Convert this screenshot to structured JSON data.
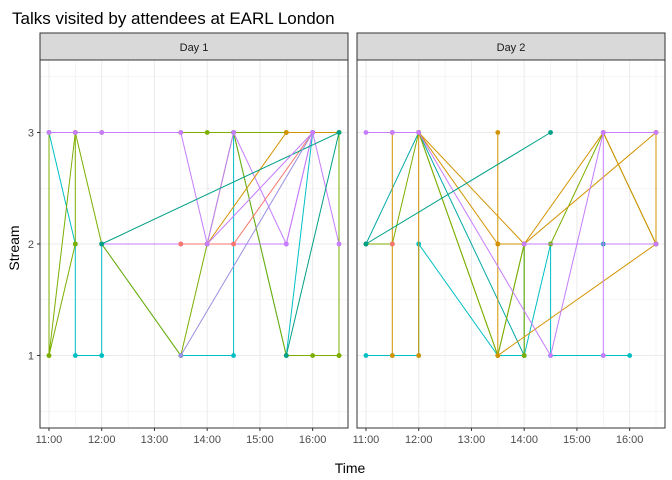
{
  "chart_data": {
    "type": "line",
    "title": "Talks visited by attendees at EARL London",
    "xlabel": "Time",
    "ylabel": "Stream",
    "facets": [
      "Day 1",
      "Day 2"
    ],
    "x_ticks": [
      "11:00",
      "12:00",
      "13:00",
      "14:00",
      "15:00",
      "16:00"
    ],
    "x_tick_values": [
      11,
      12,
      13,
      14,
      15,
      16
    ],
    "y_ticks": [
      "1",
      "2",
      "3"
    ],
    "y_tick_values": [
      1,
      2,
      3
    ],
    "xlim": [
      10.83,
      16.67
    ],
    "ylim": [
      0.35,
      3.65
    ],
    "grid": true,
    "panels": [
      {
        "facet": "Day 1",
        "series": [
          {
            "color": "#00BFC4",
            "points": [
              [
                11,
                3
              ],
              [
                11.5,
                2
              ],
              [
                11.5,
                1
              ],
              [
                12,
                1
              ],
              [
                12,
                2
              ],
              [
                13.5,
                1
              ],
              [
                14.5,
                1
              ],
              [
                14.5,
                3
              ],
              [
                15.5,
                1
              ],
              [
                16,
                3
              ]
            ]
          },
          {
            "color": "#7CAE00",
            "points": [
              [
                11,
                3
              ],
              [
                11,
                1
              ],
              [
                11.5,
                2
              ],
              [
                11.5,
                3
              ],
              [
                12,
                3
              ],
              [
                13.5,
                3
              ],
              [
                14,
                3
              ],
              [
                14.5,
                3
              ],
              [
                15.5,
                3
              ],
              [
                16.5,
                3
              ],
              [
                16.5,
                1
              ]
            ]
          },
          {
            "color": "#7CAE00",
            "points": [
              [
                11,
                1
              ],
              [
                11.5,
                3
              ],
              [
                12,
                2
              ],
              [
                13.5,
                1
              ],
              [
                14,
                2
              ],
              [
                14.5,
                3
              ],
              [
                15.5,
                1
              ],
              [
                16,
                1
              ],
              [
                16.5,
                1
              ]
            ]
          },
          {
            "color": "#C77CFF",
            "points": [
              [
                11,
                3
              ],
              [
                11.5,
                3
              ],
              [
                12,
                3
              ],
              [
                13.5,
                3
              ],
              [
                14,
                2
              ],
              [
                14.5,
                3
              ],
              [
                15.5,
                2
              ],
              [
                16,
                3
              ],
              [
                16.5,
                2
              ]
            ]
          },
          {
            "color": "#C77CFF",
            "points": [
              [
                12,
                2
              ],
              [
                13.5,
                2
              ],
              [
                14,
                2
              ],
              [
                14.5,
                2
              ],
              [
                15.5,
                2
              ],
              [
                16,
                3
              ]
            ]
          },
          {
            "color": "#F8766D",
            "points": [
              [
                13.5,
                2
              ],
              [
                14.5,
                2
              ],
              [
                16,
                3
              ]
            ]
          },
          {
            "color": "#D39200",
            "points": [
              [
                14,
                2
              ],
              [
                15.5,
                3
              ],
              [
                16,
                3
              ],
              [
                16.5,
                3
              ]
            ]
          },
          {
            "color": "#00A087",
            "points": [
              [
                12,
                2
              ],
              [
                16.5,
                3
              ],
              [
                15.5,
                1
              ]
            ]
          },
          {
            "color": "#9A8FE0",
            "points": [
              [
                13.5,
                1
              ],
              [
                16,
                3
              ]
            ]
          },
          {
            "color": "#C77CFF",
            "points": [
              [
                14,
                2
              ],
              [
                16,
                3
              ]
            ]
          }
        ]
      },
      {
        "facet": "Day 2",
        "series": [
          {
            "color": "#00BFC4",
            "points": [
              [
                11,
                1
              ],
              [
                11.5,
                1
              ],
              [
                12,
                1
              ],
              [
                12,
                2
              ],
              [
                13.5,
                1
              ],
              [
                14,
                1
              ],
              [
                14.5,
                2
              ],
              [
                14.5,
                1
              ],
              [
                15.5,
                1
              ],
              [
                16,
                1
              ]
            ]
          },
          {
            "color": "#00A9A5",
            "points": [
              [
                11,
                2
              ],
              [
                12,
                3
              ],
              [
                14,
                1
              ],
              [
                14,
                2
              ],
              [
                15.5,
                2
              ],
              [
                16.5,
                2
              ]
            ]
          },
          {
            "color": "#7CAE00",
            "points": [
              [
                11,
                2
              ],
              [
                11.5,
                2
              ],
              [
                12,
                3
              ],
              [
                13.5,
                1
              ],
              [
                14,
                2
              ],
              [
                14.5,
                2
              ],
              [
                15.5,
                3
              ],
              [
                16.5,
                2
              ]
            ]
          },
          {
            "color": "#7CAE00",
            "points": [
              [
                12,
                3
              ],
              [
                13.5,
                1
              ],
              [
                14,
                2
              ],
              [
                14,
                1
              ]
            ]
          },
          {
            "color": "#D39200",
            "points": [
              [
                11.5,
                1
              ],
              [
                11.5,
                3
              ],
              [
                12,
                3
              ],
              [
                14,
                2
              ],
              [
                13.5,
                2
              ],
              [
                13.5,
                3
              ],
              [
                13.5,
                1
              ],
              [
                16.5,
                2
              ]
            ]
          },
          {
            "color": "#D39200",
            "points": [
              [
                12,
                1
              ],
              [
                12,
                3
              ],
              [
                13.5,
                2
              ],
              [
                14,
                2
              ],
              [
                15.5,
                3
              ],
              [
                16.5,
                2
              ],
              [
                16.5,
                3
              ]
            ]
          },
          {
            "color": "#D39200",
            "points": [
              [
                14,
                2
              ],
              [
                16.5,
                3
              ]
            ]
          },
          {
            "color": "#C77CFF",
            "points": [
              [
                11,
                3
              ],
              [
                11.5,
                3
              ],
              [
                12,
                3
              ],
              [
                14.5,
                1
              ],
              [
                15.5,
                3
              ],
              [
                15.5,
                1
              ]
            ]
          },
          {
            "color": "#C77CFF",
            "points": [
              [
                14,
                2
              ],
              [
                16.5,
                2
              ]
            ]
          },
          {
            "color": "#C77CFF",
            "points": [
              [
                15.5,
                3
              ],
              [
                16.5,
                3
              ]
            ]
          },
          {
            "color": "#00A087",
            "points": [
              [
                11,
                2
              ],
              [
                14.5,
                3
              ]
            ]
          },
          {
            "color": "#F8766D",
            "points": [
              [
                11.5,
                2
              ]
            ]
          }
        ]
      }
    ]
  }
}
